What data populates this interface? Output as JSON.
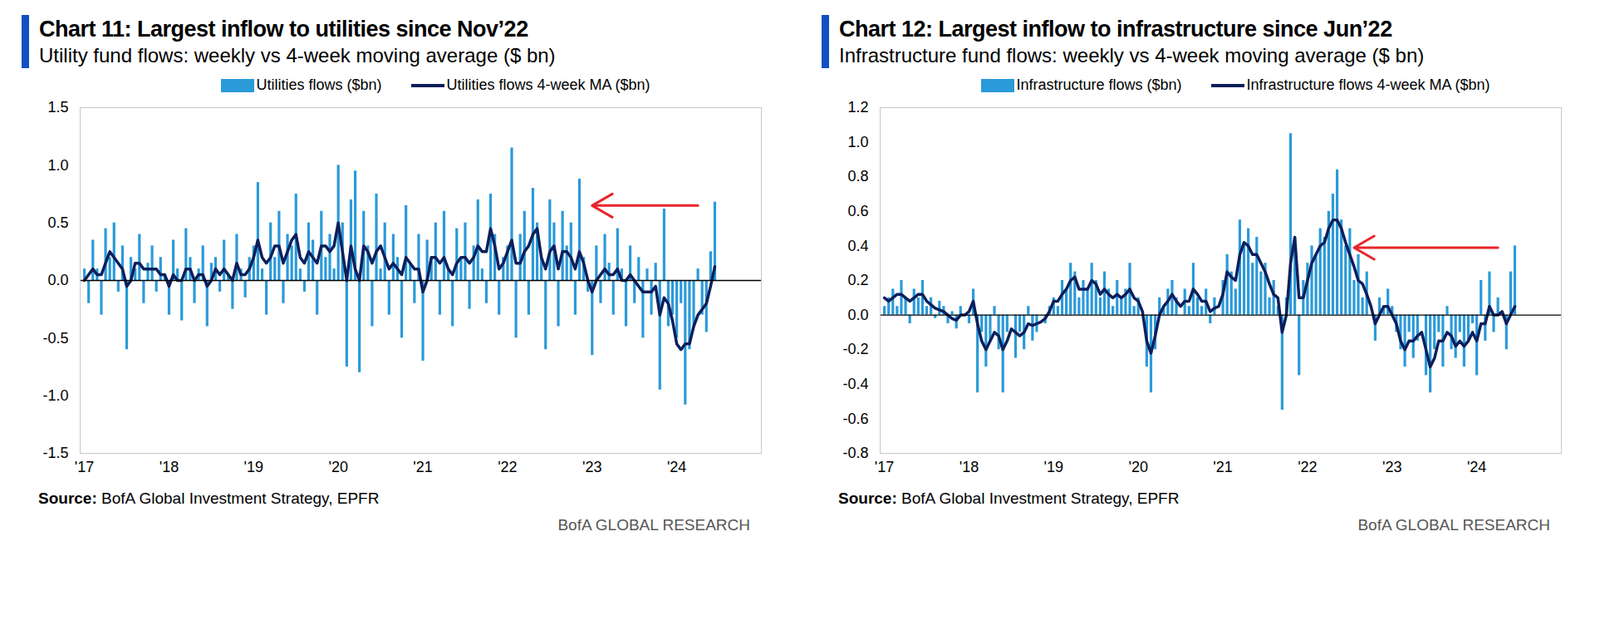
{
  "chart_data": [
    {
      "type": "bar",
      "title": "Chart 11: Largest inflow to utilities since Nov’22",
      "subtitle": "Utility fund flows: weekly vs 4-week moving average ($ bn)",
      "source_label": "Source:",
      "source": "BofA Global Investment Strategy, EPFR",
      "footer": "BofA GLOBAL RESEARCH",
      "x": [
        2017,
        2017.05,
        2017.1,
        2017.15,
        2017.2,
        2017.25,
        2017.3,
        2017.35,
        2017.4,
        2017.45,
        2017.5,
        2017.55,
        2017.6,
        2017.65,
        2017.7,
        2017.75,
        2017.8,
        2017.85,
        2017.9,
        2017.95,
        2018,
        2018.05,
        2018.1,
        2018.15,
        2018.2,
        2018.25,
        2018.3,
        2018.35,
        2018.4,
        2018.45,
        2018.5,
        2018.55,
        2018.6,
        2018.65,
        2018.7,
        2018.75,
        2018.8,
        2018.85,
        2018.9,
        2018.95,
        2019,
        2019.05,
        2019.1,
        2019.15,
        2019.2,
        2019.25,
        2019.3,
        2019.35,
        2019.4,
        2019.45,
        2019.5,
        2019.55,
        2019.6,
        2019.65,
        2019.7,
        2019.75,
        2019.8,
        2019.85,
        2019.9,
        2019.95,
        2020,
        2020.05,
        2020.1,
        2020.15,
        2020.2,
        2020.25,
        2020.3,
        2020.35,
        2020.4,
        2020.45,
        2020.5,
        2020.55,
        2020.6,
        2020.65,
        2020.7,
        2020.75,
        2020.8,
        2020.85,
        2020.9,
        2020.95,
        2021,
        2021.05,
        2021.1,
        2021.15,
        2021.2,
        2021.25,
        2021.3,
        2021.35,
        2021.4,
        2021.45,
        2021.5,
        2021.55,
        2021.6,
        2021.65,
        2021.7,
        2021.75,
        2021.8,
        2021.85,
        2021.9,
        2021.95,
        2022,
        2022.05,
        2022.1,
        2022.15,
        2022.2,
        2022.25,
        2022.3,
        2022.35,
        2022.4,
        2022.45,
        2022.5,
        2022.55,
        2022.6,
        2022.65,
        2022.7,
        2022.75,
        2022.8,
        2022.85,
        2022.9,
        2022.95,
        2023,
        2023.05,
        2023.1,
        2023.15,
        2023.2,
        2023.25,
        2023.3,
        2023.35,
        2023.4,
        2023.45,
        2023.5,
        2023.55,
        2023.6,
        2023.65,
        2023.7,
        2023.75,
        2023.8,
        2023.85,
        2023.9,
        2023.95,
        2024,
        2024.05,
        2024.1,
        2024.15,
        2024.2,
        2024.25,
        2024.3,
        2024.35,
        2024.4,
        2024.45
      ],
      "series": [
        {
          "name": "Utilities flows ($bn)",
          "type": "bar",
          "color": "#2b9ad9",
          "values": [
            0.1,
            -0.2,
            0.35,
            0.1,
            -0.3,
            0.45,
            0.2,
            0.5,
            -0.1,
            0.3,
            -0.6,
            0.2,
            0.1,
            0.4,
            -0.2,
            0.15,
            0.3,
            -0.1,
            0.2,
            0.05,
            -0.3,
            0.35,
            0.1,
            -0.35,
            0.45,
            0.2,
            -0.2,
            0.1,
            0.3,
            -0.4,
            0.15,
            0.2,
            -0.1,
            0.35,
            0.05,
            -0.25,
            0.4,
            0.1,
            -0.15,
            0.2,
            0.3,
            0.85,
            0.1,
            -0.3,
            0.5,
            0.2,
            0.6,
            -0.2,
            0.4,
            0.3,
            0.75,
            0.1,
            -0.1,
            0.5,
            0.35,
            -0.3,
            0.6,
            0.2,
            0.4,
            0.1,
            1.0,
            0.5,
            -0.75,
            0.7,
            0.95,
            -0.8,
            0.6,
            0.3,
            -0.4,
            0.75,
            0.1,
            0.5,
            -0.3,
            0.4,
            0.2,
            -0.5,
            0.65,
            0.15,
            -0.2,
            0.4,
            -0.7,
            0.35,
            0.2,
            0.5,
            -0.3,
            0.6,
            0.1,
            -0.4,
            0.45,
            0.2,
            0.5,
            -0.25,
            0.3,
            0.7,
            0.1,
            -0.2,
            0.75,
            0.4,
            -0.3,
            0.2,
            0.3,
            1.15,
            -0.5,
            0.4,
            0.6,
            -0.3,
            0.8,
            0.5,
            0.2,
            -0.6,
            0.7,
            0.5,
            -0.4,
            0.6,
            0.3,
            0.5,
            -0.3,
            0.88,
            0.2,
            -0.1,
            -0.65,
            0.3,
            -0.2,
            0.4,
            0.15,
            -0.3,
            0.45,
            0.1,
            -0.4,
            0.3,
            -0.2,
            0.2,
            -0.5,
            0.1,
            -0.3,
            0.15,
            -0.95,
            0.62,
            -0.4,
            -0.3,
            -0.5,
            -0.2,
            -1.08,
            -0.6,
            -0.4,
            0.1,
            -0.3,
            -0.45,
            0.25,
            0.68
          ]
        },
        {
          "name": "Utilities flows 4-week MA ($bn)",
          "type": "line",
          "color": "#0c1f5c",
          "values": [
            0.0,
            0.05,
            0.1,
            0.05,
            0.05,
            0.15,
            0.25,
            0.2,
            0.15,
            0.1,
            -0.05,
            0.0,
            0.15,
            0.15,
            0.1,
            0.1,
            0.1,
            0.1,
            0.05,
            0.05,
            -0.05,
            0.05,
            0.0,
            0.0,
            0.1,
            0.1,
            0.0,
            0.05,
            0.05,
            -0.05,
            0.0,
            0.1,
            0.05,
            0.1,
            0.05,
            0.0,
            0.15,
            0.05,
            0.05,
            0.1,
            0.2,
            0.35,
            0.2,
            0.15,
            0.2,
            0.3,
            0.3,
            0.15,
            0.25,
            0.35,
            0.4,
            0.2,
            0.15,
            0.25,
            0.2,
            0.15,
            0.3,
            0.3,
            0.25,
            0.3,
            0.5,
            0.25,
            0.0,
            0.3,
            0.1,
            0.0,
            0.3,
            0.25,
            0.15,
            0.25,
            0.3,
            0.2,
            0.1,
            0.15,
            0.1,
            0.05,
            0.2,
            0.15,
            0.1,
            0.1,
            -0.1,
            0.0,
            0.2,
            0.2,
            0.15,
            0.2,
            0.1,
            0.05,
            0.15,
            0.2,
            0.2,
            0.15,
            0.2,
            0.3,
            0.25,
            0.25,
            0.45,
            0.3,
            0.1,
            0.15,
            0.25,
            0.35,
            0.15,
            0.15,
            0.25,
            0.3,
            0.4,
            0.45,
            0.2,
            0.1,
            0.25,
            0.3,
            0.1,
            0.25,
            0.25,
            0.2,
            0.1,
            0.25,
            0.15,
            0.0,
            -0.1,
            0.0,
            0.05,
            0.1,
            0.05,
            0.05,
            0.1,
            0.0,
            0.0,
            0.05,
            0.0,
            -0.05,
            -0.1,
            -0.1,
            -0.1,
            -0.05,
            -0.3,
            -0.15,
            -0.2,
            -0.35,
            -0.55,
            -0.6,
            -0.55,
            -0.55,
            -0.4,
            -0.3,
            -0.25,
            -0.2,
            -0.05,
            0.12
          ]
        }
      ],
      "xlim": [
        2016.95,
        2025.0
      ],
      "xticks": [
        {
          "value": 2017,
          "label": "'17"
        },
        {
          "value": 2018,
          "label": "'18"
        },
        {
          "value": 2019,
          "label": "'19"
        },
        {
          "value": 2020,
          "label": "'20"
        },
        {
          "value": 2021,
          "label": "'21"
        },
        {
          "value": 2022,
          "label": "'22"
        },
        {
          "value": 2023,
          "label": "'23"
        },
        {
          "value": 2024,
          "label": "'24"
        }
      ],
      "ylim": [
        -1.5,
        1.5
      ],
      "yticks": [
        -1.5,
        {
          "value": -1,
          "label": "-1.0"
        },
        -0.5,
        {
          "value": 0,
          "label": "0.0"
        },
        0.5,
        {
          "value": 1,
          "label": "1.0"
        },
        1.5
      ],
      "annotations": [
        {
          "type": "arrow",
          "x1": 2024.25,
          "x2": 2023.0,
          "y": 0.65,
          "color": "#e8262b"
        }
      ],
      "legend": "top",
      "grid": false
    },
    {
      "type": "bar",
      "title": "Chart 12: Largest inflow to infrastructure since Jun’22",
      "subtitle": "Infrastructure fund flows: weekly vs 4-week moving average ($ bn)",
      "source_label": "Source:",
      "source": "BofA Global Investment Strategy, EPFR",
      "footer": "BofA GLOBAL RESEARCH",
      "x": [
        2017,
        2017.05,
        2017.1,
        2017.15,
        2017.2,
        2017.25,
        2017.3,
        2017.35,
        2017.4,
        2017.45,
        2017.5,
        2017.55,
        2017.6,
        2017.65,
        2017.7,
        2017.75,
        2017.8,
        2017.85,
        2017.9,
        2017.95,
        2018,
        2018.05,
        2018.1,
        2018.15,
        2018.2,
        2018.25,
        2018.3,
        2018.35,
        2018.4,
        2018.45,
        2018.5,
        2018.55,
        2018.6,
        2018.65,
        2018.7,
        2018.75,
        2018.8,
        2018.85,
        2018.9,
        2018.95,
        2019,
        2019.05,
        2019.1,
        2019.15,
        2019.2,
        2019.25,
        2019.3,
        2019.35,
        2019.4,
        2019.45,
        2019.5,
        2019.55,
        2019.6,
        2019.65,
        2019.7,
        2019.75,
        2019.8,
        2019.85,
        2019.9,
        2019.95,
        2020,
        2020.05,
        2020.1,
        2020.15,
        2020.2,
        2020.25,
        2020.3,
        2020.35,
        2020.4,
        2020.45,
        2020.5,
        2020.55,
        2020.6,
        2020.65,
        2020.7,
        2020.75,
        2020.8,
        2020.85,
        2020.9,
        2020.95,
        2021,
        2021.05,
        2021.1,
        2021.15,
        2021.2,
        2021.25,
        2021.3,
        2021.35,
        2021.4,
        2021.45,
        2021.5,
        2021.55,
        2021.6,
        2021.65,
        2021.7,
        2021.75,
        2021.8,
        2021.85,
        2021.9,
        2021.95,
        2022,
        2022.05,
        2022.1,
        2022.15,
        2022.2,
        2022.25,
        2022.3,
        2022.35,
        2022.4,
        2022.45,
        2022.5,
        2022.55,
        2022.6,
        2022.65,
        2022.7,
        2022.75,
        2022.8,
        2022.85,
        2022.9,
        2022.95,
        2023,
        2023.05,
        2023.1,
        2023.15,
        2023.2,
        2023.25,
        2023.3,
        2023.35,
        2023.4,
        2023.45,
        2023.5,
        2023.55,
        2023.6,
        2023.65,
        2023.7,
        2023.75,
        2023.8,
        2023.85,
        2023.9,
        2023.95,
        2024,
        2024.05,
        2024.1,
        2024.15,
        2024.2,
        2024.25,
        2024.3,
        2024.35,
        2024.4,
        2024.45
      ],
      "series": [
        {
          "name": "Infrastructure flows ($bn)",
          "type": "bar",
          "color": "#2b9ad9",
          "values": [
            0.05,
            0.1,
            0.15,
            0.05,
            0.2,
            0.1,
            -0.05,
            0.15,
            0.1,
            0.2,
            0.05,
            0.1,
            -0.02,
            0.08,
            0.05,
            -0.05,
            0.02,
            -0.08,
            0.05,
            0.0,
            -0.05,
            0.15,
            -0.45,
            -0.1,
            -0.3,
            -0.15,
            0.05,
            -0.2,
            -0.45,
            -0.1,
            0.0,
            -0.25,
            -0.1,
            -0.2,
            0.05,
            -0.15,
            -0.1,
            0.0,
            -0.05,
            0.05,
            0.1,
            0.05,
            0.2,
            0.15,
            0.3,
            0.25,
            0.1,
            0.2,
            0.15,
            0.3,
            0.2,
            0.1,
            0.25,
            0.15,
            0.05,
            0.2,
            0.1,
            0.15,
            0.3,
            0.05,
            0.1,
            0.0,
            -0.3,
            -0.45,
            -0.2,
            0.1,
            0.05,
            0.15,
            0.2,
            0.1,
            0.0,
            0.15,
            0.05,
            0.3,
            0.1,
            0.05,
            0.15,
            -0.05,
            0.1,
            0.0,
            0.2,
            0.35,
            0.25,
            0.15,
            0.55,
            0.4,
            0.5,
            0.3,
            0.45,
            0.25,
            0.3,
            0.1,
            0.2,
            0.05,
            -0.55,
            0.1,
            1.05,
            0.45,
            -0.35,
            0.2,
            0.3,
            0.4,
            0.35,
            0.5,
            0.45,
            0.6,
            0.7,
            0.84,
            0.55,
            0.4,
            0.5,
            0.2,
            0.35,
            0.1,
            0.25,
            0.0,
            -0.15,
            0.1,
            0.05,
            0.15,
            0.05,
            -0.1,
            -0.2,
            -0.3,
            -0.1,
            -0.25,
            -0.15,
            0.0,
            -0.35,
            -0.45,
            -0.2,
            -0.1,
            -0.3,
            0.05,
            -0.2,
            -0.25,
            -0.1,
            -0.3,
            -0.15,
            -0.05,
            -0.35,
            0.2,
            -0.15,
            0.25,
            -0.1,
            0.1,
            0.0,
            -0.2,
            0.25,
            0.4
          ]
        },
        {
          "name": "Infrastructure flows 4-week MA ($bn)",
          "type": "line",
          "color": "#0c1f5c",
          "values": [
            0.1,
            0.08,
            0.1,
            0.12,
            0.12,
            0.1,
            0.08,
            0.1,
            0.12,
            0.12,
            0.08,
            0.06,
            0.04,
            0.03,
            0.02,
            0.0,
            -0.02,
            -0.03,
            0.0,
            0.0,
            0.02,
            0.08,
            -0.05,
            -0.15,
            -0.2,
            -0.15,
            -0.1,
            -0.12,
            -0.2,
            -0.15,
            -0.08,
            -0.1,
            -0.12,
            -0.1,
            -0.05,
            -0.06,
            -0.05,
            -0.04,
            -0.02,
            0.02,
            0.08,
            0.08,
            0.12,
            0.15,
            0.2,
            0.22,
            0.15,
            0.15,
            0.15,
            0.2,
            0.18,
            0.12,
            0.15,
            0.12,
            0.1,
            0.12,
            0.1,
            0.12,
            0.15,
            0.1,
            0.08,
            0.02,
            -0.15,
            -0.22,
            -0.12,
            0.0,
            0.05,
            0.08,
            0.12,
            0.08,
            0.05,
            0.08,
            0.08,
            0.15,
            0.12,
            0.08,
            0.08,
            0.02,
            0.04,
            0.05,
            0.12,
            0.25,
            0.22,
            0.2,
            0.35,
            0.42,
            0.4,
            0.35,
            0.35,
            0.3,
            0.25,
            0.18,
            0.12,
            0.1,
            -0.1,
            0.0,
            0.3,
            0.45,
            0.1,
            0.1,
            0.2,
            0.3,
            0.35,
            0.4,
            0.42,
            0.5,
            0.55,
            0.55,
            0.5,
            0.42,
            0.35,
            0.28,
            0.2,
            0.18,
            0.12,
            0.05,
            -0.05,
            0.0,
            0.05,
            0.05,
            0.0,
            -0.05,
            -0.15,
            -0.2,
            -0.15,
            -0.15,
            -0.12,
            -0.1,
            -0.2,
            -0.3,
            -0.25,
            -0.15,
            -0.15,
            -0.1,
            -0.12,
            -0.18,
            -0.15,
            -0.18,
            -0.15,
            -0.1,
            -0.15,
            -0.05,
            -0.05,
            0.05,
            0.0,
            0.0,
            0.02,
            -0.05,
            0.0,
            0.05
          ]
        }
      ],
      "xlim": [
        2016.95,
        2025.0
      ],
      "xticks": [
        {
          "value": 2017,
          "label": "'17"
        },
        {
          "value": 2018,
          "label": "'18"
        },
        {
          "value": 2019,
          "label": "'19"
        },
        {
          "value": 2020,
          "label": "'20"
        },
        {
          "value": 2021,
          "label": "'21"
        },
        {
          "value": 2022,
          "label": "'22"
        },
        {
          "value": 2023,
          "label": "'23"
        },
        {
          "value": 2024,
          "label": "'24"
        }
      ],
      "ylim": [
        -0.8,
        1.2
      ],
      "yticks": [
        -0.8,
        -0.6,
        -0.4,
        -0.2,
        {
          "value": 0,
          "label": "0.0"
        },
        0.2,
        0.4,
        0.6,
        0.8,
        {
          "value": 1,
          "label": "1.0"
        },
        1.2
      ],
      "annotations": [
        {
          "type": "arrow",
          "x1": 2024.25,
          "x2": 2022.55,
          "y": 0.39,
          "color": "#e8262b"
        }
      ],
      "legend": "top",
      "grid": false
    }
  ]
}
